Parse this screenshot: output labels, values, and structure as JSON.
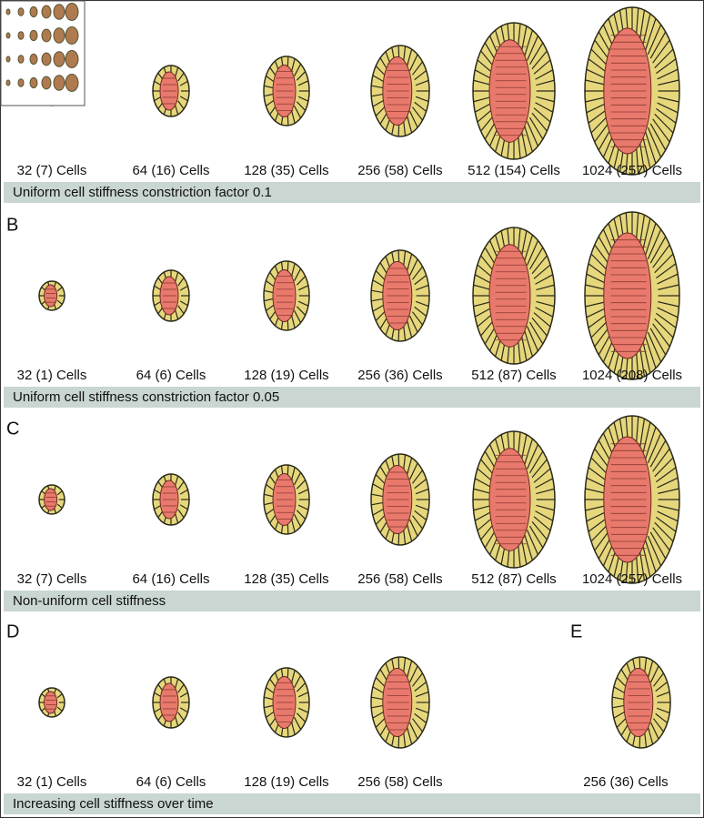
{
  "rows": [
    {
      "captions": [
        "32 (7) Cells",
        "64 (16) Cells",
        "128 (35) Cells",
        "256 (58) Cells",
        "512 (154) Cells",
        "1024 (257) Cells"
      ],
      "banner": "Uniform cell stiffness constriction factor 0.1"
    },
    {
      "label": "B",
      "captions": [
        "32 (1) Cells",
        "64 (6) Cells",
        "128 (19) Cells",
        "256 (36) Cells",
        "512 (87) Cells",
        "1024 (208) Cells"
      ],
      "banner": "Uniform cell stiffness constriction factor 0.05"
    },
    {
      "label": "C",
      "captions": [
        "32 (7) Cells",
        "64 (16) Cells",
        "128 (35) Cells",
        "256 (58) Cells",
        "512 (87) Cells",
        "1024 (257) Cells"
      ],
      "banner": "Non-uniform cell stiffness"
    },
    {
      "label": "D",
      "captions": [
        "32 (1) Cells",
        "64 (6) Cells",
        "128 (19) Cells",
        "256 (58) Cells"
      ],
      "banner": "Increasing cell stiffness over time"
    }
  ],
  "panel_e": {
    "label": "E",
    "caption": "256 (36) Cells"
  }
}
